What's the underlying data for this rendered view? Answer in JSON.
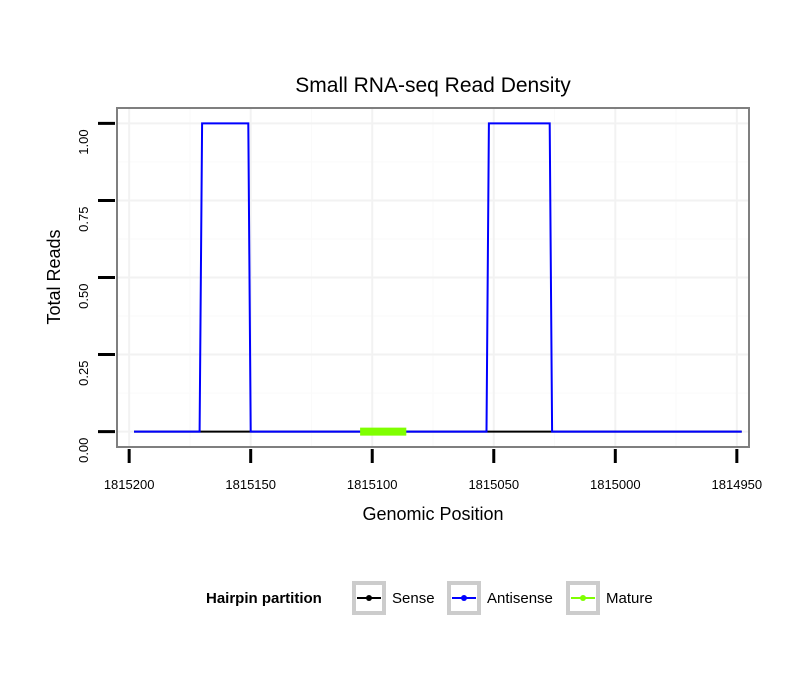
{
  "chart_data": {
    "type": "line",
    "title": "Small RNA-seq Read Density",
    "xlabel": "Genomic Position",
    "ylabel": "Total Reads",
    "x_reversed": true,
    "xlim": [
      1815205,
      1814945
    ],
    "ylim": [
      -0.05,
      1.05
    ],
    "x_ticks": [
      1815200,
      1815150,
      1815100,
      1815050,
      1815000,
      1814950
    ],
    "x_tick_labels": [
      "1815200",
      "1815150",
      "1815100",
      "1815050",
      "1815000",
      "1814950"
    ],
    "y_ticks": [
      0,
      0.25,
      0.5,
      0.75,
      1
    ],
    "y_tick_labels": [
      "0.00",
      "0.25",
      "0.50",
      "0.75",
      "1.00"
    ],
    "grid": true,
    "legend": {
      "title": "Hairpin partition",
      "position": "bottom",
      "entries": [
        {
          "label": "Sense",
          "color": "#000000"
        },
        {
          "label": "Antisense",
          "color": "#0000ff"
        },
        {
          "label": "Mature",
          "color": "#7fff00"
        }
      ]
    },
    "series": [
      {
        "name": "Sense",
        "color": "#000000",
        "x": [
          1815198,
          1814948
        ],
        "y": [
          0,
          0
        ]
      },
      {
        "name": "Antisense",
        "color": "#0000ff",
        "x": [
          1815198,
          1815171,
          1815170,
          1815151,
          1815150,
          1815053,
          1815052,
          1815027,
          1815026,
          1814948
        ],
        "y": [
          0,
          0,
          1,
          1,
          0,
          0,
          1,
          1,
          0,
          0
        ]
      },
      {
        "name": "Mature",
        "color": "#7fff00",
        "x": [
          1815105,
          1815086
        ],
        "y": [
          0,
          0
        ]
      }
    ]
  }
}
